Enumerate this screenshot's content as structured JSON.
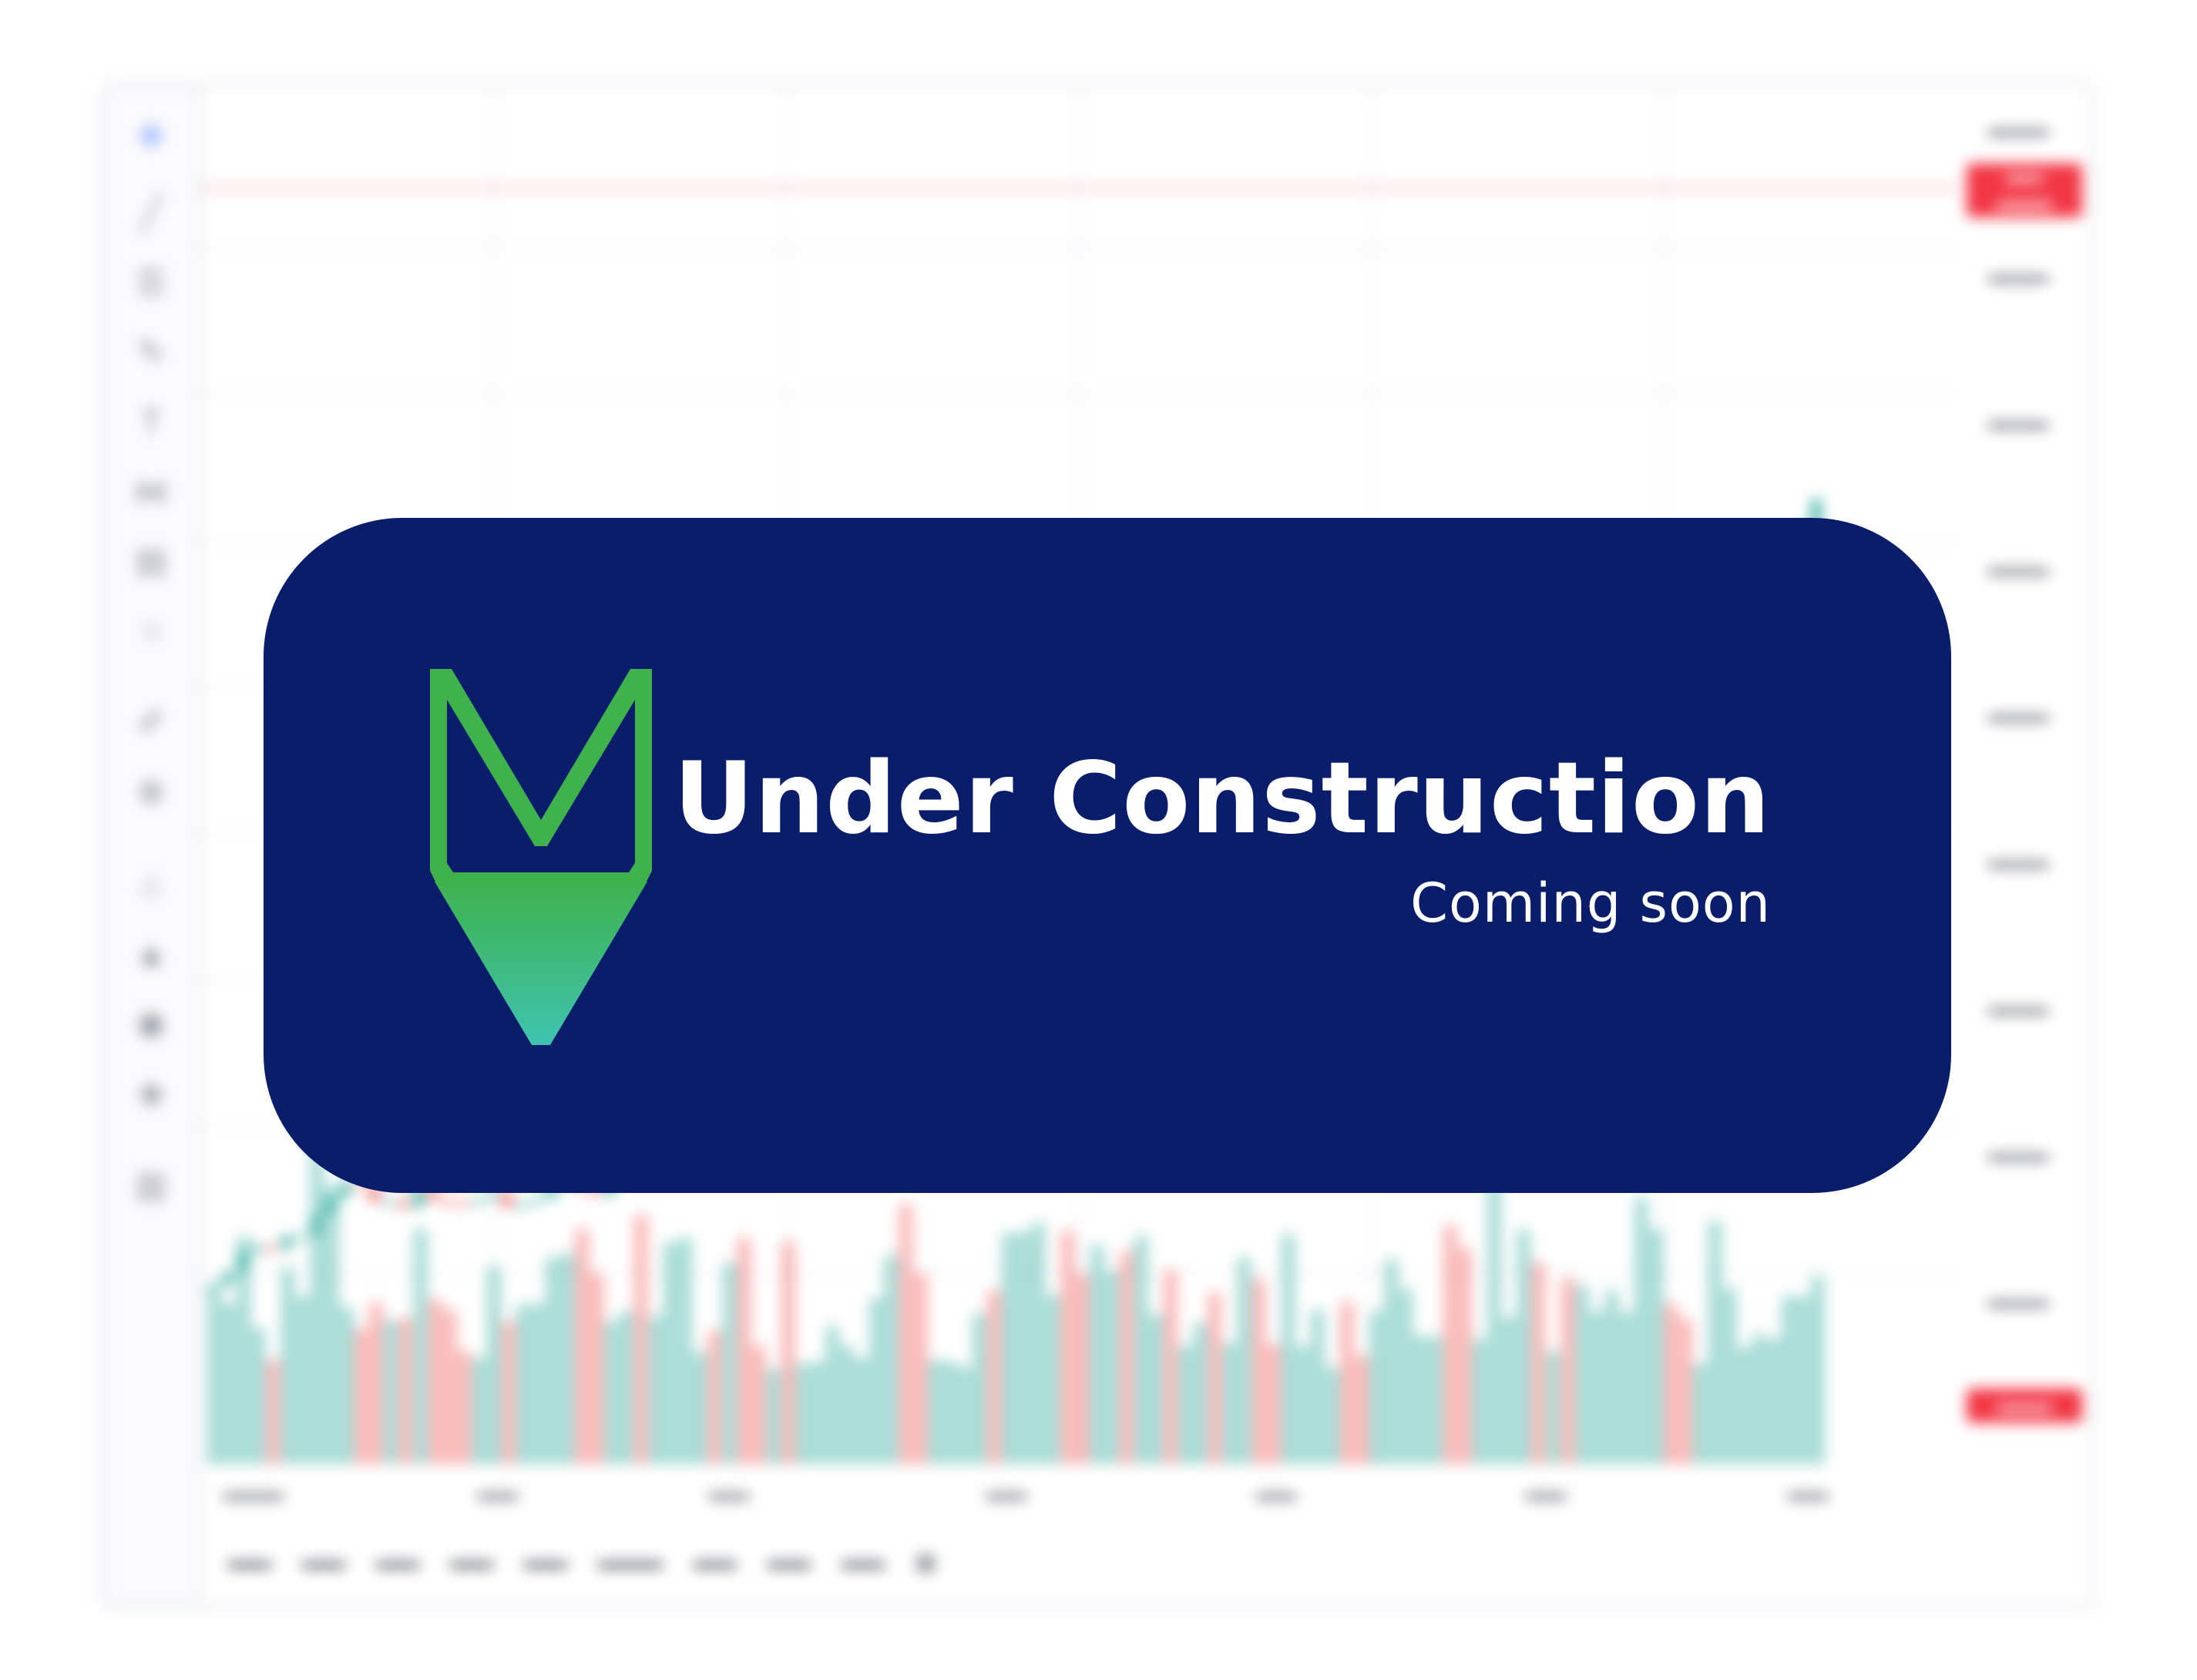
{
  "card": {
    "title": "Under Construction",
    "subtitle": "Coming soon",
    "background_color": "#091d6b",
    "logo_icon": "pin-logo-icon",
    "logo_colors": [
      "#3fb24e",
      "#3fc3b0"
    ]
  },
  "background_app": {
    "blurred": true,
    "tool_icons": [
      "crosshair-icon",
      "trend-line-icon",
      "fib-icon",
      "brush-icon",
      "text-icon",
      "pattern-icon",
      "measure-icon",
      "circle-icon",
      "pencil-icon",
      "zoom-icon",
      "magnet-icon",
      "lock-icon",
      "eye-icon",
      "layers-icon",
      "trash-icon"
    ],
    "candle_colors": {
      "up": "#26a69a",
      "down": "#ef5350"
    },
    "price_tag_color": "#f23645"
  }
}
